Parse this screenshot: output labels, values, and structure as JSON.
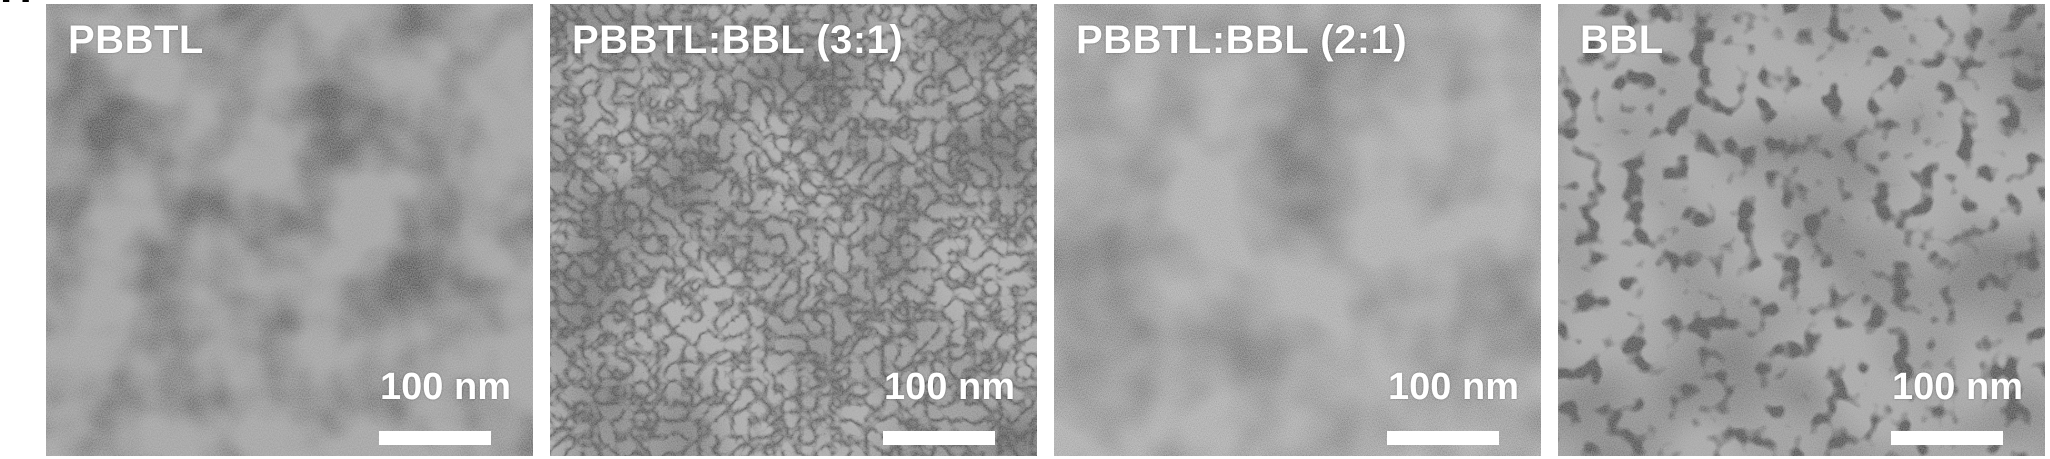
{
  "figure": {
    "panel_letter": "H",
    "panels": [
      {
        "label": "PBBTL",
        "scale_bar_label": "100 nm"
      },
      {
        "label": "PBBTL:BBL (3:1)",
        "scale_bar_label": "100 nm"
      },
      {
        "label": "PBBTL:BBL (2:1)",
        "scale_bar_label": "100 nm"
      },
      {
        "label": "BBL",
        "scale_bar_label": "100 nm"
      }
    ]
  },
  "colors": {
    "label_text": "#ffffff",
    "scale_bar": "#ffffff",
    "background": "#ffffff"
  }
}
